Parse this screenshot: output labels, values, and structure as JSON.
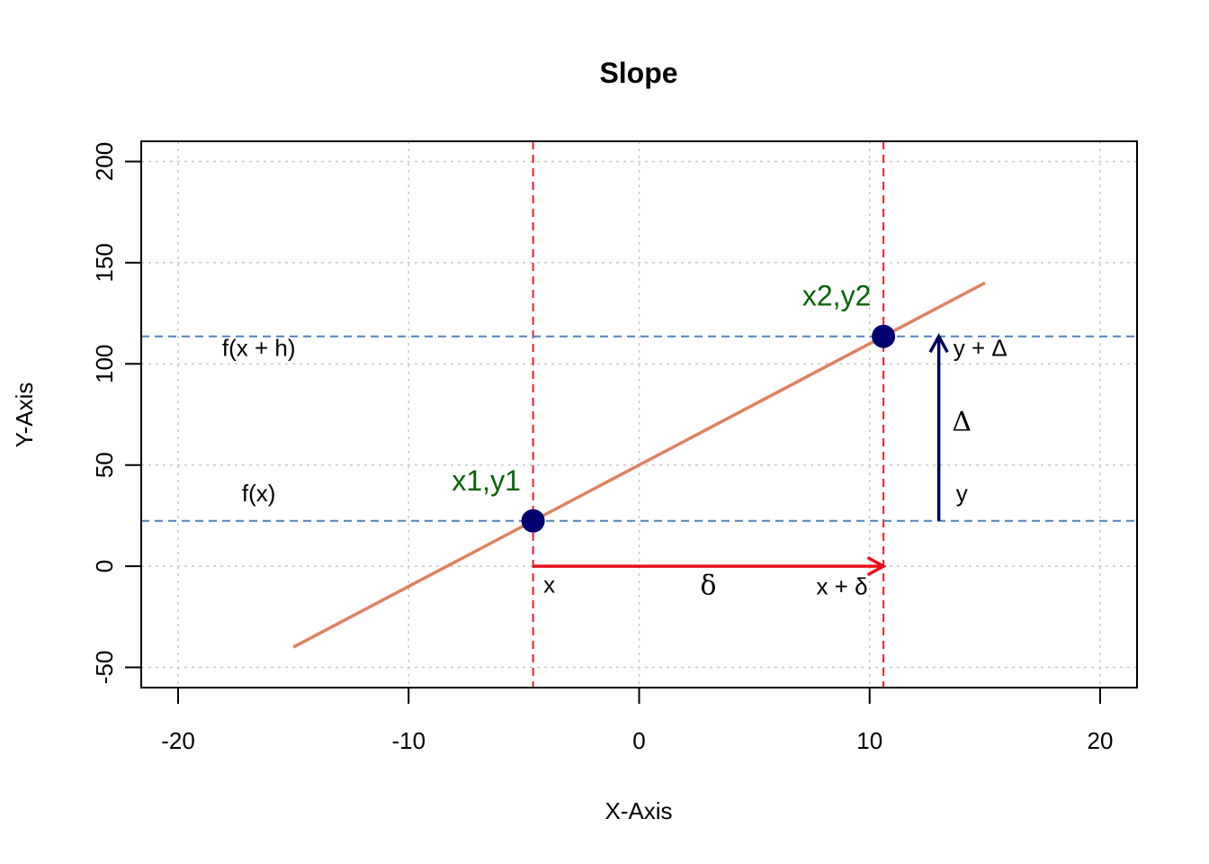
{
  "chart_data": {
    "type": "line",
    "title": "Slope",
    "xlabel": "X-Axis",
    "ylabel": "Y-Axis",
    "xlim": [
      -21.6,
      21.6
    ],
    "ylim": [
      -60,
      210
    ],
    "xticks": [
      -20,
      -10,
      0,
      10,
      20
    ],
    "yticks": [
      -50,
      0,
      50,
      100,
      150,
      200
    ],
    "xtick_labels": [
      "-20",
      "-10",
      "0",
      "10",
      "20"
    ],
    "ytick_labels": [
      "-50",
      "0",
      "50",
      "100",
      "150",
      "200"
    ],
    "grid": true,
    "line": {
      "x": [
        -15,
        15
      ],
      "y": [
        -40,
        140
      ],
      "color": "#E08060"
    },
    "points": [
      {
        "label": "x1,y1",
        "x": -4.6,
        "y": 22.4,
        "color": "#000070",
        "label_color": "#006400"
      },
      {
        "label": "x2,y2",
        "x": 10.6,
        "y": 113.6,
        "color": "#000070",
        "label_color": "#006400"
      }
    ],
    "vlines": [
      {
        "x": -4.6,
        "color": "#E8202A"
      },
      {
        "x": 10.6,
        "color": "#E8202A"
      }
    ],
    "hlines": [
      {
        "y": 22.4,
        "color": "#4F81BD"
      },
      {
        "y": 113.6,
        "color": "#4F81BD"
      }
    ],
    "arrows": [
      {
        "name": "delta-arrow",
        "x0": -4.6,
        "y0": 0,
        "x1": 10.6,
        "y1": 0,
        "color": "#E8101A"
      },
      {
        "name": "Delta-arrow",
        "x0": 13,
        "y0": 22.4,
        "x1": 13,
        "y1": 113.6,
        "color": "#000060"
      }
    ],
    "annotations": [
      {
        "name": "fxh-label",
        "text": "f(x + h)",
        "x": -16.5,
        "y": 104,
        "style": "ann"
      },
      {
        "name": "fx-label",
        "text": "f(x)",
        "x": -16.5,
        "y": 32,
        "style": "ann"
      },
      {
        "name": "x-label",
        "text": "x",
        "x": -3.9,
        "y": -13,
        "style": "ann"
      },
      {
        "name": "small-delta-label",
        "text": "δ",
        "x": 3.0,
        "y": -14,
        "style": "ann-greek"
      },
      {
        "name": "x-plus-delta-label",
        "text": "x + δ",
        "x": 8.8,
        "y": -14,
        "style": "ann"
      },
      {
        "name": "y-plus-Delta-label",
        "text": "y + Δ",
        "x": 14.8,
        "y": 104,
        "style": "ann"
      },
      {
        "name": "big-Delta-label",
        "text": "Δ",
        "x": 14.0,
        "y": 67,
        "style": "ann-greek"
      },
      {
        "name": "y-label",
        "text": "y",
        "x": 14.0,
        "y": 32,
        "style": "ann"
      }
    ]
  }
}
